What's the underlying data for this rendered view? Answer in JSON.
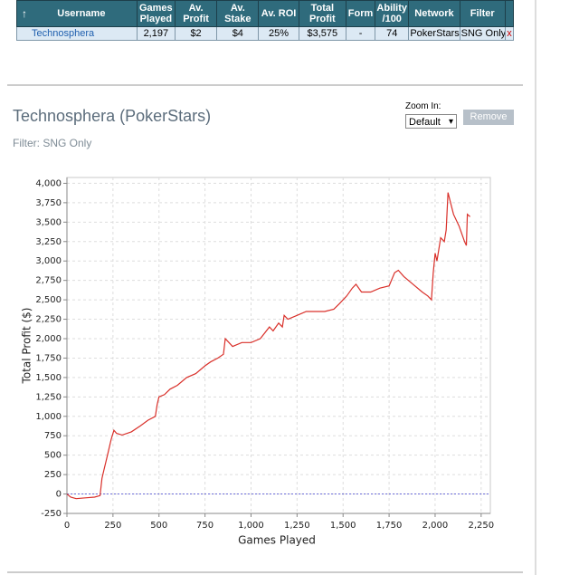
{
  "table": {
    "headers": [
      "Username",
      "Games Played",
      "Av. Profit",
      "Av. Stake",
      "Av. ROI",
      "Total Profit",
      "Form",
      "Ability /100",
      "Network",
      "Filter"
    ],
    "rows": [
      [
        "Technosphera",
        "2,197",
        "$2",
        "$4",
        "25%",
        "$3,575",
        "-",
        "74",
        "PokerStars",
        "SNG Only",
        "x"
      ]
    ]
  },
  "controls": {
    "zoom_label": "Zoom In:",
    "zoom_selected": "Default",
    "remove_button": "Remove"
  },
  "chart_data": {
    "type": "line",
    "title": "Technosphera (PokerStars)",
    "subtitle": "Filter: SNG Only",
    "x_label": "Games Played",
    "y_label": "Total Profit ($)",
    "xlim": [
      0,
      2300
    ],
    "ylim": [
      -250,
      4075
    ],
    "xticks": [
      0,
      250,
      500,
      750,
      {
        "value": 1000,
        "label": "1,000"
      },
      {
        "value": 1250,
        "label": "1,250"
      },
      {
        "value": 1500,
        "label": "1,500"
      },
      {
        "value": 1750,
        "label": "1,750"
      },
      {
        "value": 2000,
        "label": "2,000"
      },
      {
        "value": 2250,
        "label": "2,250"
      }
    ],
    "yticks": [
      -250,
      0,
      250,
      500,
      750,
      {
        "value": 1000,
        "label": "1,000"
      },
      {
        "value": 1250,
        "label": "1,250"
      },
      {
        "value": 1500,
        "label": "1,500"
      },
      {
        "value": 1750,
        "label": "1,750"
      },
      {
        "value": 2000,
        "label": "2,000"
      },
      {
        "value": 2250,
        "label": "2,250"
      },
      {
        "value": 2500,
        "label": "2,500"
      },
      {
        "value": 2750,
        "label": "2,750"
      },
      {
        "value": 3000,
        "label": "3,000"
      },
      {
        "value": 3250,
        "label": "3,250"
      },
      {
        "value": 3500,
        "label": "3,500"
      },
      {
        "value": 3750,
        "label": "3,750"
      },
      {
        "value": 4000,
        "label": "4,000"
      }
    ],
    "grid": true,
    "zero_line": true,
    "series": [
      {
        "color": "#d9302a",
        "x": [
          0,
          20,
          50,
          100,
          150,
          180,
          190,
          200,
          220,
          240,
          255,
          270,
          300,
          350,
          400,
          440,
          480,
          490,
          500,
          530,
          560,
          600,
          650,
          700,
          750,
          780,
          820,
          850,
          860,
          880,
          900,
          950,
          1000,
          1050,
          1100,
          1120,
          1150,
          1170,
          1180,
          1200,
          1250,
          1300,
          1400,
          1450,
          1480,
          1520,
          1550,
          1570,
          1600,
          1650,
          1700,
          1750,
          1780,
          1800,
          1830,
          1880,
          1930,
          1960,
          1980,
          1990,
          2000,
          2010,
          2030,
          2050,
          2060,
          2070,
          2100,
          2130,
          2160,
          2170,
          2175,
          2190
        ],
        "values": [
          0,
          -40,
          -60,
          -50,
          -40,
          -20,
          200,
          300,
          500,
          700,
          820,
          780,
          760,
          800,
          880,
          950,
          1000,
          1150,
          1250,
          1280,
          1350,
          1400,
          1500,
          1550,
          1650,
          1700,
          1750,
          1800,
          2000,
          1950,
          1900,
          1950,
          1950,
          2000,
          2150,
          2100,
          2200,
          2150,
          2300,
          2250,
          2300,
          2350,
          2350,
          2380,
          2450,
          2550,
          2650,
          2700,
          2600,
          2600,
          2650,
          2680,
          2850,
          2880,
          2800,
          2700,
          2600,
          2550,
          2500,
          2850,
          3100,
          3000,
          3300,
          3250,
          3400,
          3880,
          3600,
          3450,
          3250,
          3200,
          3600,
          3570
        ]
      }
    ]
  }
}
